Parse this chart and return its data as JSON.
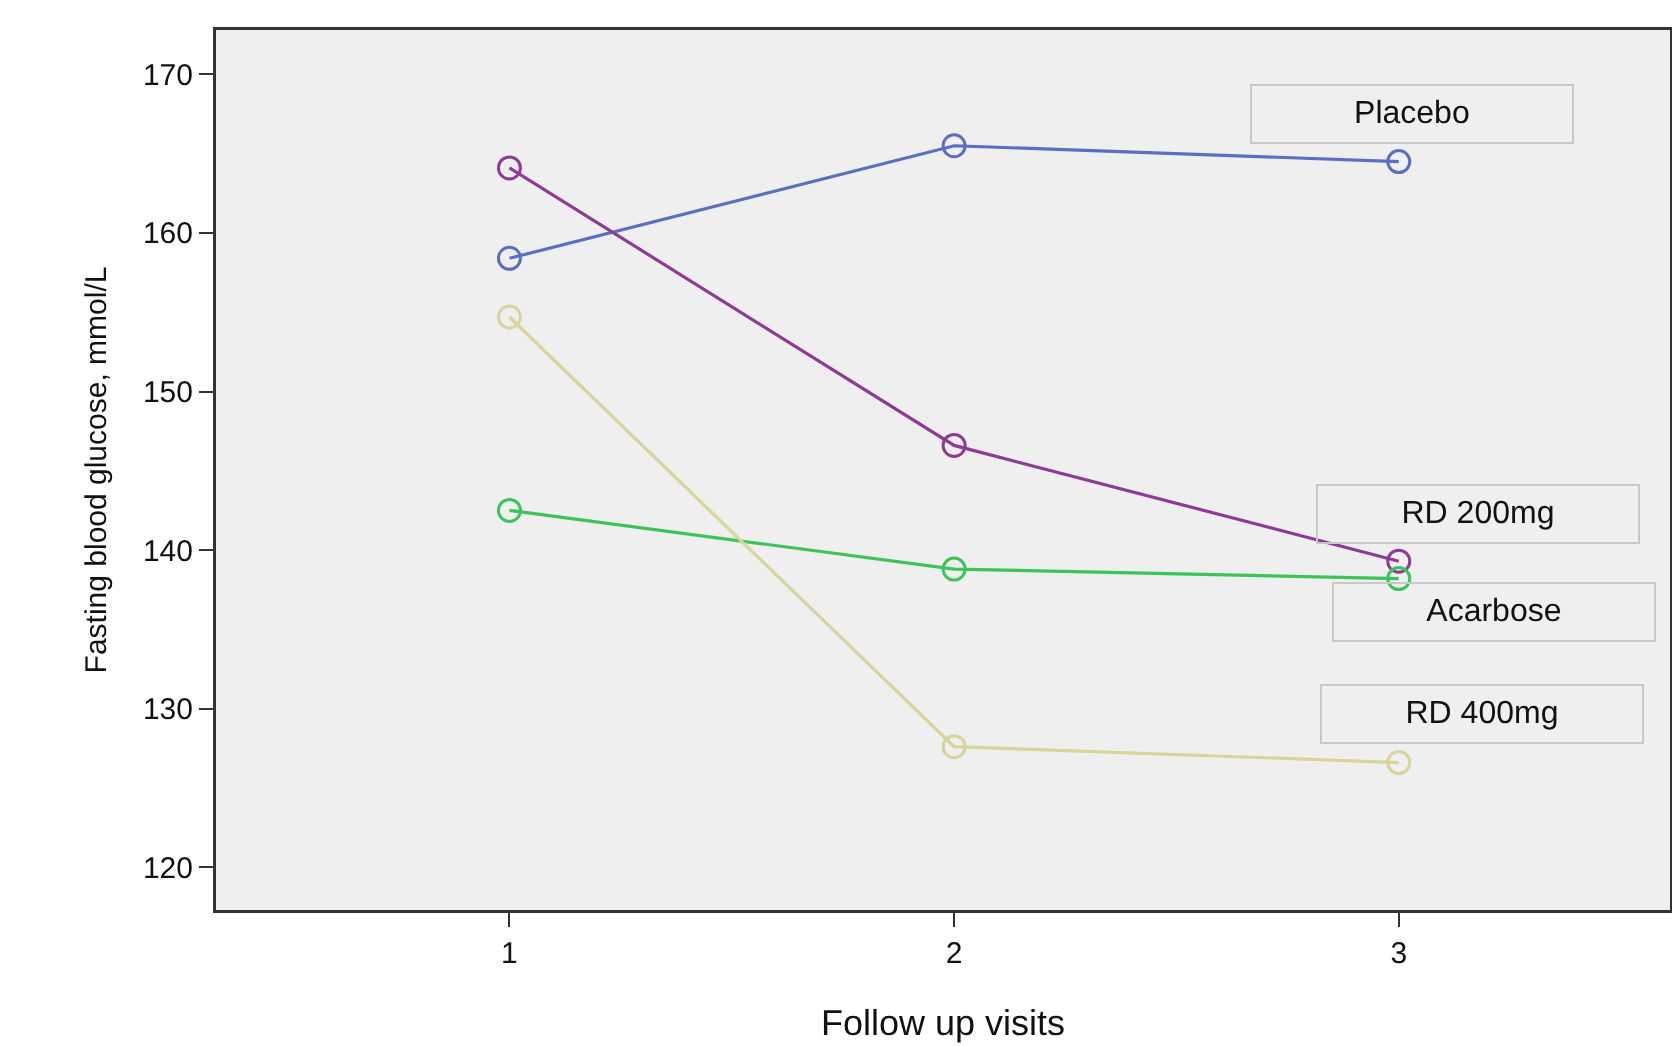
{
  "chart_data": {
    "type": "line",
    "xlabel": "Follow up visits",
    "ylabel": "Fasting blood glucose, mmol/L",
    "x": [
      1,
      2,
      3
    ],
    "xlim": [
      0.34,
      3.61
    ],
    "xticks": [
      1,
      2,
      3
    ],
    "ylim": [
      117.3,
      172.8
    ],
    "yticks": [
      120,
      130,
      140,
      150,
      160,
      170
    ],
    "grid": false,
    "legend": false,
    "marker": "circle",
    "line_style": "solid",
    "series": [
      {
        "name": "Placebo",
        "color": "#5a6fc4",
        "values": [
          158.4,
          165.5,
          164.5
        ]
      },
      {
        "name": "RD 200mg",
        "color": "#8e3a96",
        "values": [
          164.1,
          146.6,
          139.3
        ]
      },
      {
        "name": "Acarbose",
        "color": "#3cc45a",
        "values": [
          142.5,
          138.8,
          138.2
        ]
      },
      {
        "name": "RD 400mg",
        "color": "#d8d49a",
        "values": [
          154.7,
          127.6,
          126.6
        ]
      }
    ]
  }
}
